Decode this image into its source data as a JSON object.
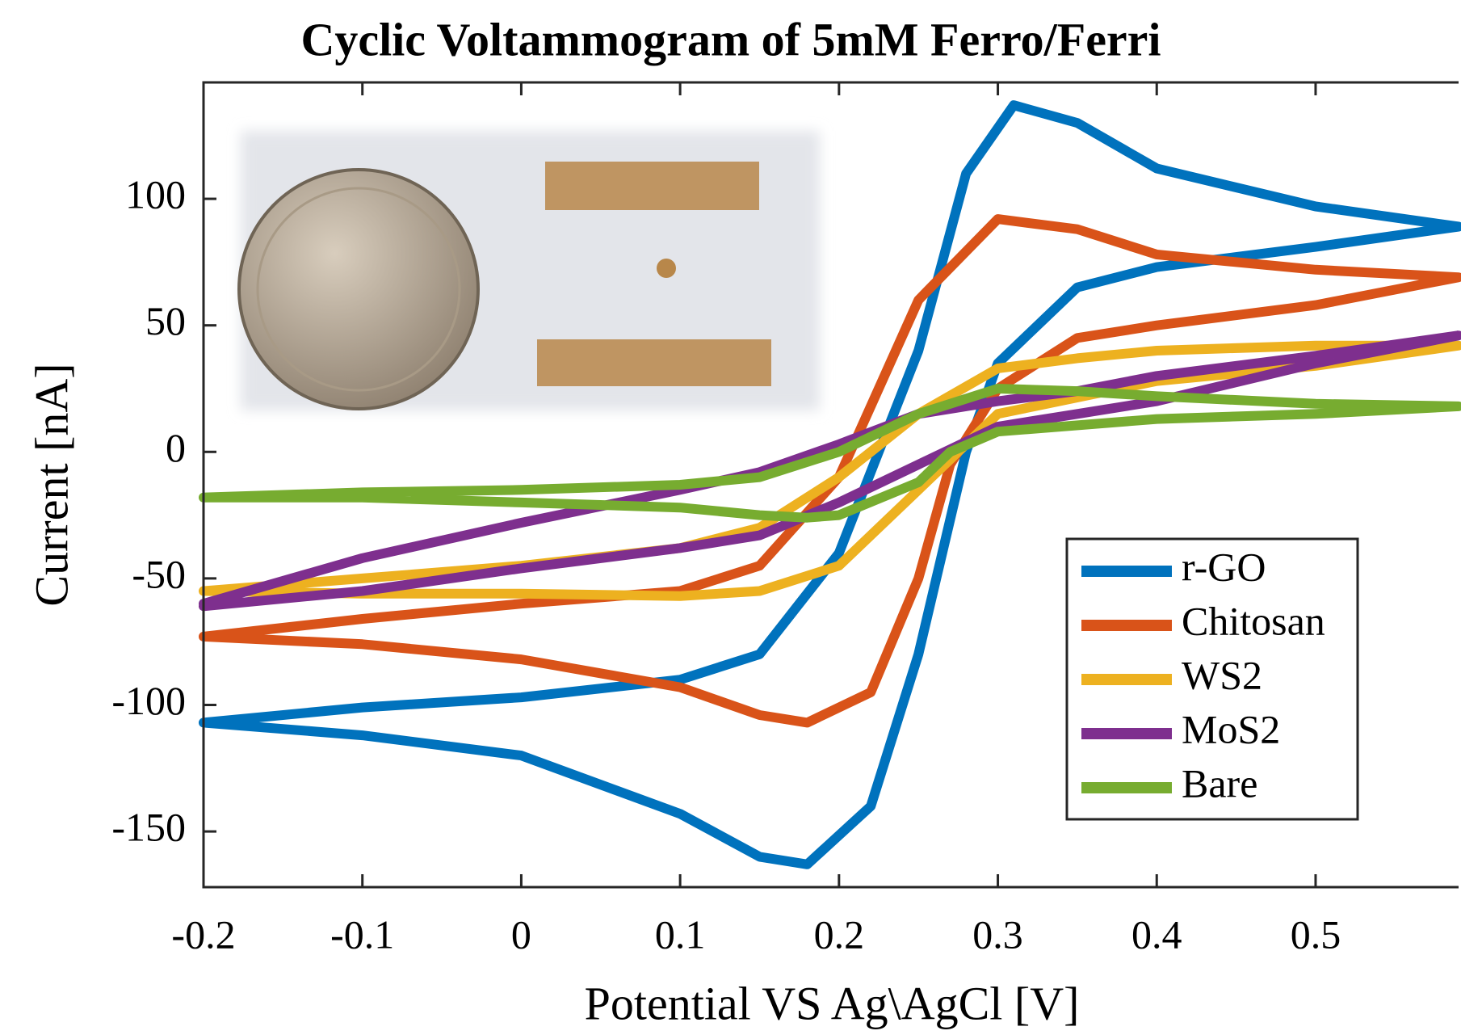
{
  "chart_data": {
    "type": "line",
    "title": "Cyclic Voltammogram of 5mM Ferro/Ferri",
    "x_label": "Potential VS Ag\\AgCl [V]",
    "y_label": "Current [nA]",
    "xlim": [
      -0.2,
      0.59
    ],
    "ylim": [
      -172,
      146
    ],
    "xticks": [
      -0.2,
      -0.1,
      0,
      0.1,
      0.2,
      0.3,
      0.4,
      0.5
    ],
    "yticks": [
      -150,
      -100,
      -50,
      0,
      50,
      100
    ],
    "legend": "lower right",
    "series": [
      {
        "name": "r-GO",
        "color": "#0072bd",
        "x": [
          -0.2,
          -0.1,
          0,
          0.1,
          0.15,
          0.2,
          0.25,
          0.28,
          0.31,
          0.35,
          0.4,
          0.5,
          0.59,
          0.5,
          0.4,
          0.35,
          0.3,
          0.28,
          0.25,
          0.22,
          0.18,
          0.15,
          0.1,
          0,
          -0.1,
          -0.2
        ],
        "values": [
          -107,
          -101,
          -97,
          -90,
          -80,
          -40,
          40,
          110,
          137,
          130,
          112,
          97,
          89,
          81,
          73,
          65,
          35,
          0,
          -80,
          -140,
          -163,
          -160,
          -143,
          -120,
          -112,
          -107
        ]
      },
      {
        "name": "Chitosan",
        "color": "#d95319",
        "x": [
          -0.2,
          -0.1,
          0,
          0.1,
          0.15,
          0.2,
          0.25,
          0.3,
          0.35,
          0.4,
          0.5,
          0.59,
          0.5,
          0.4,
          0.35,
          0.3,
          0.27,
          0.25,
          0.22,
          0.18,
          0.15,
          0.1,
          0,
          -0.1,
          -0.2
        ],
        "values": [
          -73,
          -66,
          -60,
          -55,
          -45,
          -10,
          60,
          92,
          88,
          78,
          72,
          69,
          58,
          50,
          45,
          25,
          -5,
          -50,
          -95,
          -107,
          -104,
          -93,
          -82,
          -76,
          -73
        ]
      },
      {
        "name": "WS2",
        "color": "#edb120",
        "x": [
          -0.2,
          -0.1,
          0,
          0.1,
          0.15,
          0.2,
          0.25,
          0.3,
          0.35,
          0.4,
          0.5,
          0.59,
          0.5,
          0.4,
          0.3,
          0.25,
          0.2,
          0.15,
          0.1,
          0,
          -0.1,
          -0.2
        ],
        "values": [
          -55,
          -50,
          -45,
          -38,
          -30,
          -10,
          15,
          33,
          37,
          40,
          42,
          42,
          34,
          28,
          15,
          -15,
          -45,
          -55,
          -57,
          -56,
          -56,
          -55
        ]
      },
      {
        "name": "MoS2",
        "color": "#7e2f8e",
        "x": [
          -0.2,
          -0.1,
          0,
          0.1,
          0.15,
          0.2,
          0.25,
          0.3,
          0.35,
          0.4,
          0.5,
          0.59,
          0.5,
          0.4,
          0.3,
          0.25,
          0.2,
          0.15,
          0.1,
          0,
          -0.1,
          -0.2
        ],
        "values": [
          -60,
          -42,
          -28,
          -15,
          -8,
          3,
          15,
          20,
          24,
          30,
          38,
          46,
          35,
          20,
          10,
          -5,
          -20,
          -33,
          -38,
          -46,
          -55,
          -61
        ]
      },
      {
        "name": "Bare",
        "color": "#77ac30",
        "x": [
          -0.2,
          -0.1,
          0,
          0.1,
          0.15,
          0.2,
          0.25,
          0.3,
          0.35,
          0.4,
          0.5,
          0.59,
          0.5,
          0.4,
          0.3,
          0.27,
          0.25,
          0.2,
          0.18,
          0.15,
          0.1,
          0,
          -0.1,
          -0.2
        ],
        "values": [
          -18,
          -16,
          -15,
          -13,
          -10,
          0,
          15,
          25,
          24,
          22,
          19,
          18,
          15,
          13,
          8,
          0,
          -12,
          -25,
          -26,
          -25,
          -22,
          -20,
          -18,
          -18
        ]
      }
    ]
  }
}
